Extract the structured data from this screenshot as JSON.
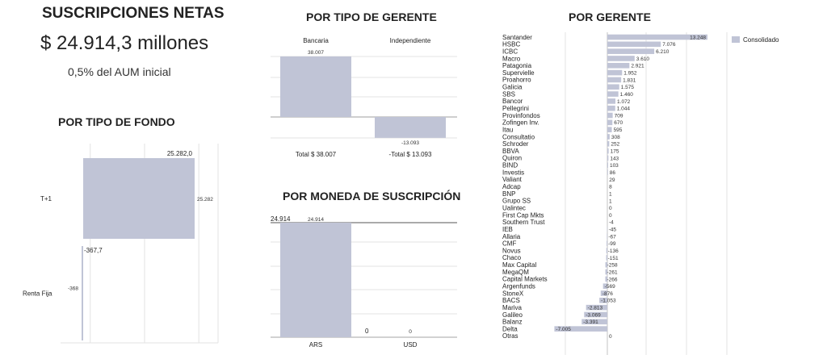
{
  "summary": {
    "title": "SUSCRIPCIONES NETAS",
    "amount": "$ 24.914,3 millones",
    "aum": "0,5% del AUM inicial"
  },
  "colors": {
    "bar": "#c0c4d6",
    "text": "#222222",
    "grid": "#e3e3e3"
  },
  "chart_data": [
    {
      "id": "fondo",
      "type": "bar",
      "title": "POR TIPO DE FONDO",
      "orientation": "horizontal",
      "categories": [
        "T+1",
        "Renta Fija"
      ],
      "values": [
        25282.0,
        -367.7
      ],
      "top_labels": [
        "25.282,0",
        "-367,7"
      ],
      "value_labels": [
        "25.282",
        "-368"
      ],
      "xlim": [
        -1000,
        28000
      ]
    },
    {
      "id": "gerente_tipo",
      "type": "bar",
      "title": "POR TIPO DE GERENTE",
      "categories": [
        "Bancaria",
        "Independiente"
      ],
      "values": [
        38007,
        -13093
      ],
      "value_labels": [
        "38.007",
        "-13.093"
      ],
      "totals": [
        "Total $ 38.007",
        "-Total $ 13.093"
      ],
      "ylim": [
        -17000,
        40000
      ]
    },
    {
      "id": "moneda",
      "type": "bar",
      "title": "POR MONEDA DE SUSCRIPCIÓN",
      "categories": [
        "ARS",
        "USD"
      ],
      "values": [
        24914,
        0
      ],
      "value_labels": [
        "24.914",
        "0"
      ],
      "top_labels": [
        "24.914",
        "0"
      ],
      "ylim": [
        0,
        26000
      ]
    },
    {
      "id": "por_gerente",
      "type": "bar",
      "orientation": "horizontal",
      "title": "POR GERENTE",
      "legend": "Consolidado",
      "legend_position": "top-right",
      "categories": [
        "Santander",
        "HSBC",
        "ICBC",
        "Macro",
        "Patagonia",
        "Supervielle",
        "Proahorro",
        "Galicia",
        "SBS",
        "Bancor",
        "Pellegrini",
        "Provinfondos",
        "Zofingen Inv.",
        "Itau",
        "Consultatio",
        "Schroder",
        "BBVA",
        "Quiron",
        "BIND",
        "Investis",
        "Valiant",
        "Adcap",
        "BNP",
        "Grupo SS",
        "Ualintec",
        "First Cap Mkts",
        "Southern Trust",
        "IEB",
        "Allaria",
        "CMF",
        "Novus",
        "Chaco",
        "Max Capital",
        "MegaQM",
        "Capital Markets",
        "Argenfunds",
        "StoneX",
        "BACS",
        "Mariva",
        "Galileo",
        "Balanz",
        "Delta",
        "Otras"
      ],
      "values": [
        13248,
        7076,
        6210,
        3610,
        2921,
        1952,
        1831,
        1575,
        1460,
        1072,
        1044,
        709,
        670,
        595,
        308,
        252,
        175,
        143,
        103,
        86,
        29,
        8,
        1,
        1,
        0,
        0,
        -4,
        -45,
        -67,
        -99,
        -136,
        -151,
        -258,
        -261,
        -266,
        -569,
        -876,
        -1053,
        -2813,
        -3069,
        -3391,
        -7005,
        0
      ],
      "value_labels": [
        "13.248",
        "7.076",
        "6.210",
        "3.610",
        "2.921",
        "1.952",
        "1.831",
        "1.575",
        "1.460",
        "1.072",
        "1.044",
        "709",
        "670",
        "595",
        "308",
        "252",
        "175",
        "143",
        "103",
        "86",
        "29",
        "8",
        "1",
        "1",
        "0",
        "0",
        "-4",
        "-45",
        "-67",
        "-99",
        "-136",
        "-151",
        "-258",
        "-261",
        "-266",
        "-569",
        "-876",
        "-1.053",
        "-2.813",
        "-3.069",
        "-3.391",
        "-7.005",
        "0"
      ],
      "xlim": [
        -8000,
        14000
      ]
    }
  ]
}
